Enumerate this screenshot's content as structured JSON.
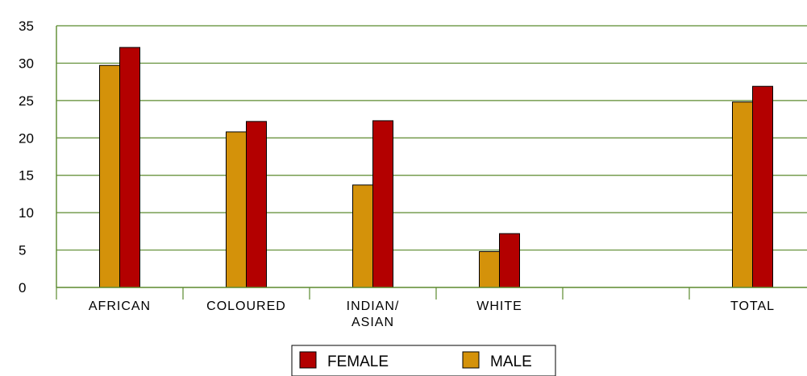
{
  "chart_data": {
    "type": "bar",
    "categories": [
      "AFRICAN",
      "COLOURED",
      "INDIAN/\nASIAN",
      "WHITE",
      "",
      "TOTAL"
    ],
    "series": [
      {
        "name": "MALE",
        "color": "#D4920A",
        "values": [
          29.7,
          20.8,
          13.7,
          4.8,
          null,
          24.8
        ]
      },
      {
        "name": "FEMALE",
        "color": "#B30000",
        "values": [
          32.1,
          22.2,
          22.3,
          7.2,
          null,
          26.9
        ]
      }
    ],
    "yticks": [
      0,
      5,
      10,
      15,
      20,
      25,
      30,
      35
    ],
    "ylim": [
      0,
      35
    ],
    "grid": true,
    "grid_color": "#5B8A2E",
    "legend": {
      "position": "bottom",
      "items": [
        "FEMALE",
        "MALE"
      ]
    },
    "title": "",
    "xlabel": "",
    "ylabel": ""
  }
}
